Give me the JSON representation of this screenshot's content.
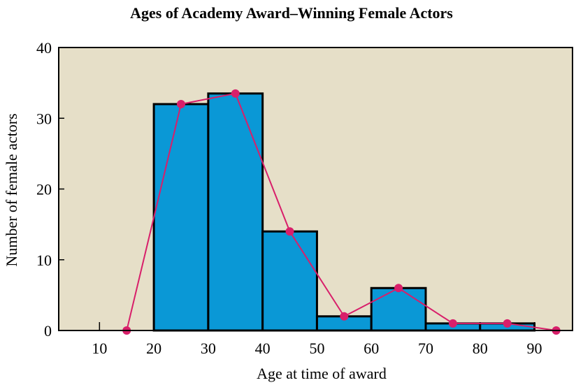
{
  "chart_data": {
    "type": "bar",
    "title": "Ages of Academy Award–Winning Female Actors",
    "xlabel": "Age at time of award",
    "ylabel": "Number of female actors",
    "bins": [
      {
        "start": 20,
        "end": 30,
        "value": 32
      },
      {
        "start": 30,
        "end": 40,
        "value": 33.5
      },
      {
        "start": 40,
        "end": 50,
        "value": 14
      },
      {
        "start": 50,
        "end": 60,
        "value": 2
      },
      {
        "start": 60,
        "end": 70,
        "value": 6
      },
      {
        "start": 70,
        "end": 80,
        "value": 1
      },
      {
        "start": 80,
        "end": 90,
        "value": 1
      }
    ],
    "polygon": {
      "x": [
        15,
        25,
        35,
        45,
        55,
        65,
        75,
        85,
        94
      ],
      "y": [
        0,
        32,
        33.5,
        14,
        2,
        6,
        1,
        1,
        0
      ]
    },
    "xlim": [
      2.5,
      97
    ],
    "ylim": [
      0,
      40
    ],
    "xticks": [
      10,
      20,
      30,
      40,
      50,
      60,
      70,
      80,
      90
    ],
    "yticks": [
      0,
      10,
      20,
      30,
      40
    ],
    "colors": {
      "background": "#e6dfc8",
      "bar": "#0a98d6",
      "polygon": "#d81f6a"
    }
  }
}
